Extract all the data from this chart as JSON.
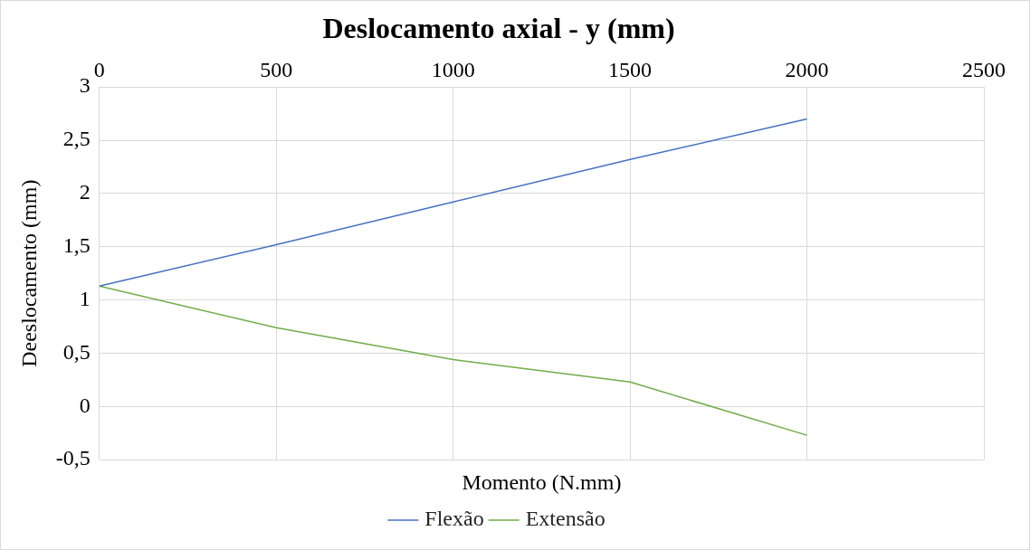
{
  "chart_data": {
    "type": "line",
    "title": "Deslocamento axial - y (mm)",
    "xlabel": "Momento (N.mm)",
    "ylabel": "Deeslocamento (mm)",
    "x": [
      0,
      500,
      1000,
      1500,
      2000
    ],
    "series": [
      {
        "name": "Flexão",
        "color": "#4472c4",
        "values": [
          1.13,
          1.52,
          1.92,
          2.32,
          2.7
        ]
      },
      {
        "name": "Extensão",
        "color": "#70ad47",
        "values": [
          1.13,
          0.74,
          0.44,
          0.23,
          -0.27
        ]
      }
    ],
    "xlim": [
      0,
      2500
    ],
    "xticks": [
      0,
      500,
      1000,
      1500,
      2000,
      2500
    ],
    "ylim": [
      -0.5,
      3
    ],
    "yticks": [
      {
        "value": -0.5,
        "label": "-0,5"
      },
      0,
      {
        "value": 0.5,
        "label": "0,5"
      },
      1,
      {
        "value": 1.5,
        "label": "1,5"
      },
      2,
      {
        "value": 2.5,
        "label": "2,5"
      },
      3
    ],
    "grid": true,
    "legend": "bottom",
    "marker": "none",
    "line_style": "solid"
  }
}
